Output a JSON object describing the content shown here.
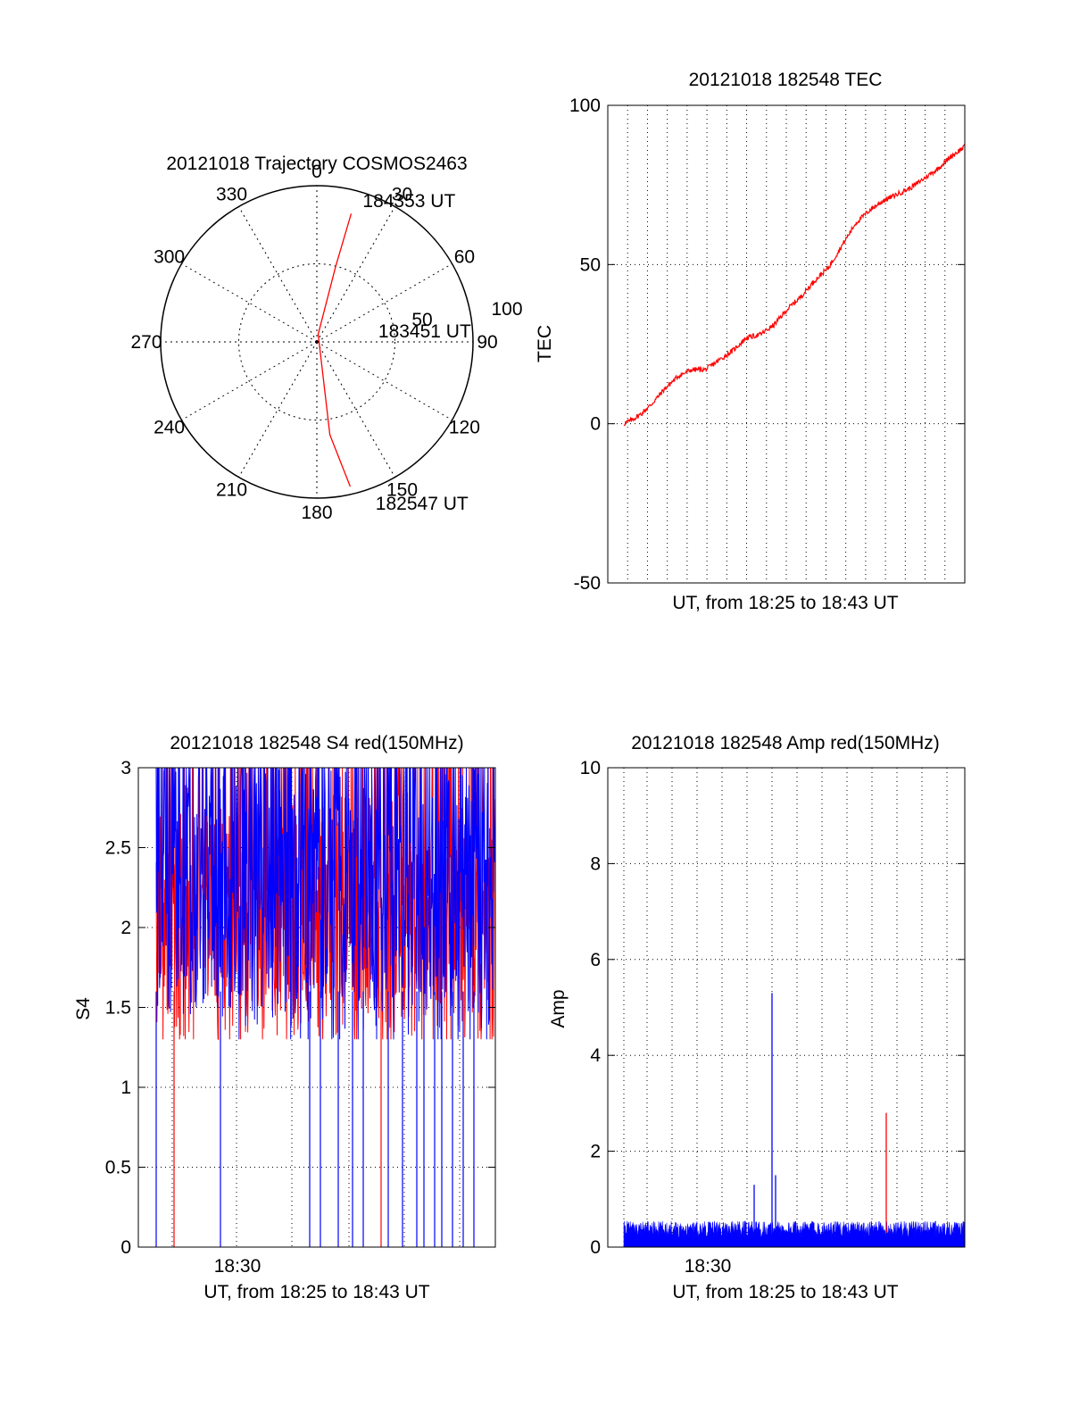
{
  "colors": {
    "red": "#ff0000",
    "blue": "#0000ff",
    "axis": "#000000",
    "grid": "#000000"
  },
  "chart_data": [
    {
      "id": "trajectory",
      "type": "polar",
      "title": "20121018 Trajectory COSMOS2463",
      "angle_labels": [
        "0",
        "30",
        "60",
        "90",
        "120",
        "150",
        "180",
        "210",
        "240",
        "270",
        "300",
        "330"
      ],
      "radial_labels": [
        "50",
        "100"
      ],
      "rlim": [
        0,
        100
      ],
      "grid": true,
      "trajectory": [
        {
          "azimuth": 167,
          "zenith": 95
        },
        {
          "azimuth": 172,
          "zenith": 60
        },
        {
          "azimuth": 10,
          "zenith": 5
        },
        {
          "azimuth": 14,
          "zenith": 50
        },
        {
          "azimuth": 15,
          "zenith": 85
        }
      ],
      "annotations": [
        {
          "text": "184353 UT",
          "azimuth": 18,
          "zenith": 95
        },
        {
          "text": "183451 UT",
          "azimuth": 80,
          "zenith": 40
        },
        {
          "text": "182547 UT",
          "azimuth": 160,
          "zenith": 110
        }
      ]
    },
    {
      "id": "tec",
      "type": "line",
      "title": "20121018 182548 TEC",
      "xlabel": "UT, from 18:25 to 18:43 UT",
      "ylabel": "TEC",
      "ylim": [
        -50,
        100
      ],
      "yticks": [
        "-50",
        "0",
        "50",
        "100"
      ],
      "xlim": [
        0,
        100
      ],
      "grid": true,
      "series": [
        {
          "color": "red",
          "x": [
            0,
            2,
            5,
            8,
            12,
            16,
            20,
            24,
            28,
            32,
            36,
            40,
            44,
            48,
            52,
            56,
            60,
            64,
            68,
            72,
            76,
            80,
            84,
            88,
            92,
            96,
            100
          ],
          "y": [
            0,
            1,
            3,
            6,
            11,
            15,
            17,
            17,
            20,
            23,
            27,
            28,
            31,
            36,
            40,
            45,
            49,
            56,
            63,
            67,
            70,
            72,
            74,
            77,
            80,
            84,
            87
          ]
        }
      ]
    },
    {
      "id": "s4",
      "type": "line",
      "title": "20121018 182548 S4 red(150MHz)",
      "xlabel": "UT, from 18:25 to 18:43 UT",
      "ylabel": "S4",
      "ylim": [
        0,
        3
      ],
      "yticks": [
        "0",
        "0.5",
        "1",
        "1.5",
        "2",
        "2.5",
        "3"
      ],
      "xticks": [
        "18:30"
      ],
      "grid": true,
      "series": [
        {
          "color": "red",
          "mean": 2.0,
          "spread": 0.45,
          "min_floor": 1.3
        },
        {
          "color": "blue",
          "mean": 2.2,
          "spread": 0.55,
          "min_floor": 1.3
        }
      ],
      "annotations": [
        {
          "color": "red",
          "dropouts_x": [
            0.1,
            0.68
          ]
        },
        {
          "color": "blue",
          "dropouts_x": [
            0.05,
            0.23,
            0.48,
            0.51,
            0.56,
            0.6,
            0.63,
            0.7,
            0.74,
            0.78,
            0.8,
            0.83,
            0.85,
            0.88,
            0.91,
            0.94
          ]
        }
      ]
    },
    {
      "id": "amp",
      "type": "line",
      "title": "20121018 182548 Amp red(150MHz)",
      "xlabel": "UT, from 18:25 to 18:43 UT",
      "ylabel": "Amp",
      "ylim": [
        0,
        10
      ],
      "yticks": [
        "0",
        "2",
        "4",
        "6",
        "8",
        "10"
      ],
      "xticks": [
        "18:30"
      ],
      "grid": true,
      "series": [
        {
          "color": "blue",
          "baseline": 0.3,
          "noise": 0.25
        },
        {
          "color": "red",
          "spike_x": 0.78,
          "spike_y": 2.8
        }
      ],
      "annotations": [
        {
          "color": "blue",
          "spike_x": 0.46,
          "spike_y": 5.3
        },
        {
          "color": "blue",
          "spike_x": 0.47,
          "spike_y": 1.5
        },
        {
          "color": "blue",
          "spike_x": 0.41,
          "spike_y": 1.3
        }
      ]
    }
  ]
}
